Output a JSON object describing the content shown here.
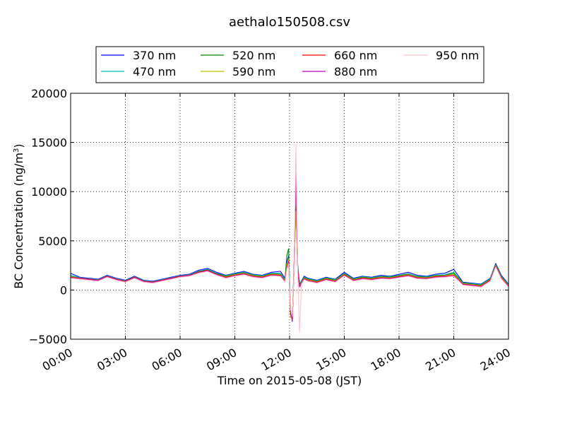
{
  "chart_data": {
    "type": "line",
    "title": "aethalo150508.csv",
    "xlabel": "Time on 2015-05-08 (JST)",
    "ylabel": "BC Concentration (ng/m",
    "ylabel_superscript": "3",
    "ylabel_close": ")",
    "xlim": [
      0,
      24
    ],
    "ylim": [
      -5000,
      20000
    ],
    "xticks": [
      0,
      3,
      6,
      9,
      12,
      15,
      18,
      21,
      24
    ],
    "xtick_labels": [
      "00:00",
      "03:00",
      "06:00",
      "09:00",
      "12:00",
      "15:00",
      "18:00",
      "21:00",
      "24:00"
    ],
    "yticks": [
      -5000,
      0,
      5000,
      10000,
      15000,
      20000
    ],
    "ytick_labels": [
      "−5000",
      "0",
      "5000",
      "10000",
      "15000",
      "20000"
    ],
    "grid": true,
    "legend_position": "top-center",
    "x": [
      0.0,
      0.5,
      1.0,
      1.5,
      2.0,
      2.5,
      3.0,
      3.5,
      4.0,
      4.5,
      5.0,
      5.5,
      6.0,
      6.5,
      7.0,
      7.5,
      8.0,
      8.5,
      9.0,
      9.5,
      10.0,
      10.5,
      11.0,
      11.5,
      11.75,
      11.85,
      11.95,
      12.05,
      12.15,
      12.25,
      12.35,
      12.45,
      12.55,
      12.65,
      12.8,
      13.0,
      13.5,
      14.0,
      14.5,
      15.0,
      15.5,
      16.0,
      16.5,
      17.0,
      17.5,
      18.0,
      18.5,
      19.0,
      19.5,
      20.0,
      20.5,
      21.0,
      21.5,
      22.0,
      22.5,
      23.0,
      23.3,
      23.6,
      24.0
    ],
    "series": [
      {
        "name": "370 nm",
        "color": "#0000ff",
        "values": [
          1700,
          1300,
          1200,
          1100,
          1500,
          1200,
          1000,
          1400,
          1000,
          900,
          1100,
          1300,
          1500,
          1600,
          2000,
          2200,
          1800,
          1500,
          1700,
          1900,
          1600,
          1500,
          1800,
          1900,
          1200,
          2800,
          3500,
          -2000,
          -3200,
          3000,
          10000,
          2500,
          600,
          900,
          1400,
          1200,
          1000,
          1300,
          1100,
          1800,
          1200,
          1400,
          1300,
          1500,
          1400,
          1600,
          1800,
          1500,
          1400,
          1600,
          1700,
          2100,
          800,
          700,
          600,
          1200,
          2700,
          1500,
          600
        ]
      },
      {
        "name": "470 nm",
        "color": "#00bfbf",
        "values": [
          1500,
          1250,
          1150,
          1050,
          1450,
          1150,
          950,
          1350,
          950,
          850,
          1050,
          1250,
          1450,
          1550,
          1900,
          2100,
          1700,
          1450,
          1650,
          1800,
          1550,
          1450,
          1700,
          1700,
          1100,
          2600,
          3300,
          -1800,
          -3000,
          2800,
          9000,
          2300,
          500,
          850,
          1300,
          1150,
          950,
          1250,
          1050,
          1700,
          1150,
          1350,
          1250,
          1400,
          1350,
          1500,
          1650,
          1400,
          1350,
          1500,
          1550,
          1800,
          750,
          650,
          550,
          1150,
          2600,
          1400,
          550
        ]
      },
      {
        "name": "520 nm",
        "color": "#008000",
        "values": [
          1400,
          1200,
          1100,
          1000,
          1400,
          1100,
          900,
          1300,
          900,
          800,
          1000,
          1200,
          1400,
          1500,
          1850,
          2050,
          1650,
          1400,
          1600,
          1750,
          1500,
          1400,
          1650,
          1600,
          1000,
          3500,
          4200,
          -2500,
          -2800,
          2600,
          8500,
          2200,
          450,
          800,
          1250,
          1100,
          900,
          1200,
          1000,
          1650,
          1100,
          1300,
          1200,
          1350,
          1300,
          1450,
          1600,
          1350,
          1300,
          1450,
          1500,
          1700,
          700,
          600,
          500,
          1100,
          2550,
          1350,
          500
        ]
      },
      {
        "name": "590 nm",
        "color": "#bfbf00",
        "values": [
          1350,
          1200,
          1100,
          1000,
          1400,
          1100,
          900,
          1300,
          900,
          800,
          1000,
          1200,
          1400,
          1500,
          1800,
          2000,
          1600,
          1350,
          1550,
          1700,
          1450,
          1350,
          1600,
          1550,
          950,
          2500,
          3100,
          -2800,
          -2600,
          2500,
          8000,
          2100,
          400,
          750,
          1200,
          1050,
          850,
          1150,
          950,
          1600,
          1050,
          1250,
          1150,
          1300,
          1250,
          1400,
          1550,
          1300,
          1250,
          1400,
          1450,
          1600,
          650,
          550,
          450,
          1050,
          2500,
          1300,
          450
        ]
      },
      {
        "name": "660 nm",
        "color": "#ff0000",
        "values": [
          1300,
          1200,
          1100,
          1000,
          1400,
          1100,
          900,
          1300,
          900,
          800,
          1000,
          1200,
          1400,
          1500,
          1800,
          2000,
          1600,
          1300,
          1500,
          1650,
          1400,
          1300,
          1550,
          1500,
          900,
          2300,
          2900,
          -2300,
          -3100,
          2400,
          12500,
          2000,
          350,
          700,
          1150,
          1000,
          800,
          1100,
          900,
          1550,
          1000,
          1200,
          1100,
          1250,
          1200,
          1350,
          1500,
          1250,
          1200,
          1350,
          1400,
          1500,
          600,
          500,
          400,
          1000,
          2450,
          1250,
          400
        ]
      },
      {
        "name": "880 nm",
        "color": "#bf00bf",
        "values": [
          1250,
          1150,
          1050,
          950,
          1350,
          1050,
          850,
          1250,
          850,
          750,
          950,
          1150,
          1350,
          1450,
          1750,
          1950,
          1550,
          1250,
          1450,
          1600,
          1350,
          1250,
          1500,
          1450,
          850,
          2200,
          2800,
          -2100,
          -2900,
          2300,
          11500,
          1900,
          300,
          650,
          1100,
          950,
          750,
          1050,
          850,
          1500,
          950,
          1150,
          1050,
          1200,
          1150,
          1300,
          1450,
          1200,
          1150,
          1300,
          1350,
          1450,
          550,
          450,
          350,
          950,
          2400,
          1200,
          350
        ]
      },
      {
        "name": "950 nm",
        "color": "#ffc0cb",
        "values": [
          1200,
          1100,
          1000,
          900,
          1300,
          1000,
          800,
          1200,
          800,
          700,
          900,
          1100,
          1300,
          1400,
          1700,
          1900,
          1500,
          1200,
          1400,
          1550,
          1300,
          1200,
          1450,
          1400,
          800,
          2100,
          2700,
          -1900,
          -2700,
          2200,
          14800,
          1800,
          -4300,
          600,
          1050,
          900,
          700,
          1000,
          800,
          1450,
          900,
          1100,
          1000,
          1150,
          1100,
          1250,
          1400,
          1150,
          1100,
          1250,
          1300,
          1400,
          500,
          400,
          300,
          900,
          2350,
          1150,
          300
        ]
      }
    ]
  }
}
